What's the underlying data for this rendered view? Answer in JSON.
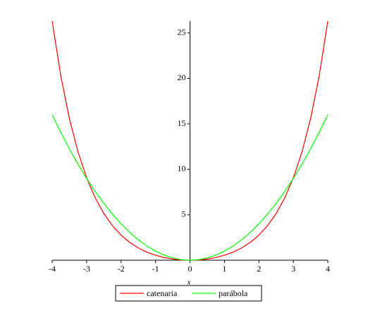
{
  "chart_data": {
    "type": "line",
    "x": [
      -4,
      -3.75,
      -3.5,
      -3.25,
      -3,
      -2.75,
      -2.5,
      -2.25,
      -2,
      -1.75,
      -1.5,
      -1.25,
      -1,
      -0.75,
      -0.5,
      -0.25,
      0,
      0.25,
      0.5,
      0.75,
      1,
      1.25,
      1.5,
      1.75,
      2,
      2.25,
      2.5,
      2.75,
      3,
      3.25,
      3.5,
      3.75,
      4
    ],
    "series": [
      {
        "name": "catenaria",
        "color": "#ff0000",
        "values": [
          26.3082,
          20.288,
          15.5728,
          11.9146,
          9.0677,
          6.8533,
          5.1323,
          3.7966,
          2.7622,
          1.9642,
          1.3524,
          0.8884,
          0.5431,
          0.2947,
          0.1276,
          0.0314,
          0,
          0.0314,
          0.1276,
          0.2947,
          0.5431,
          0.8884,
          1.3524,
          1.9642,
          2.7622,
          3.7966,
          5.1323,
          6.8533,
          9.0677,
          11.9146,
          15.5728,
          20.288,
          26.3082
        ]
      },
      {
        "name": "parábola",
        "color": "#00ff00",
        "values": [
          16,
          14.0625,
          12.25,
          10.5625,
          9,
          7.5625,
          6.25,
          5.0625,
          4,
          3.0625,
          2.25,
          1.5625,
          1,
          0.5625,
          0.25,
          0.0625,
          0,
          0.0625,
          0.25,
          0.5625,
          1,
          1.5625,
          2.25,
          3.0625,
          4,
          5.0625,
          6.25,
          7.5625,
          9,
          10.5625,
          12.25,
          14.0625,
          16
        ]
      }
    ],
    "x_label": "x",
    "xlim": [
      -4,
      4
    ],
    "ylim": [
      0,
      26.3
    ],
    "xticks": [
      -4,
      -3,
      -2,
      -1,
      0,
      1,
      2,
      3,
      4
    ],
    "yticks": [
      5,
      10,
      15,
      20,
      25
    ],
    "legend": "bottom"
  }
}
